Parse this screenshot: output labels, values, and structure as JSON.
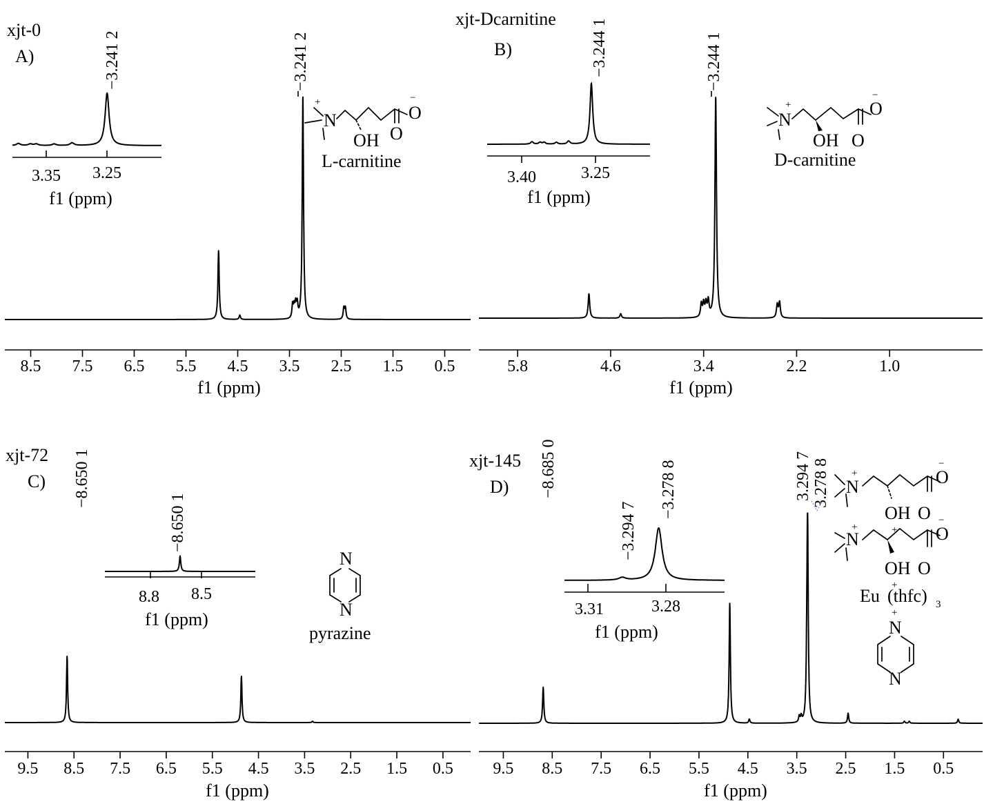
{
  "axis_title": "f1 (ppm)",
  "panels": {
    "A": {
      "sample": "xjt-0",
      "label": "A)",
      "peak_label": "−3.241 2",
      "inset_peak_label": "−3.241 2",
      "ticks": [
        "8.5",
        "7.5",
        "6.5",
        "5.5",
        "4.5",
        "3.5",
        "2.5",
        "1.5",
        "0.5"
      ],
      "inset_ticks": [
        "3.35",
        "3.25"
      ],
      "molecule": {
        "name": "L-carnitine",
        "OH": "OH",
        "O": "O",
        "N": "N",
        "plus": "+",
        "minus": "−"
      }
    },
    "B": {
      "sample": "xjt-Dcarnitine",
      "label": "B)",
      "peak_label": "−3.244 1",
      "inset_peak_label": "−3.244 1",
      "ticks": [
        "5.8",
        "4.6",
        "3.4",
        "2.2",
        "1.0"
      ],
      "inset_ticks": [
        "3.40",
        "3.25"
      ],
      "molecule": {
        "name": "D-carnitine",
        "OH": "OH",
        "O": "O",
        "N": "N",
        "plus": "+",
        "minus": "−"
      }
    },
    "C": {
      "sample": "xjt-72",
      "label": "C)",
      "peak_label": "−8.650 1",
      "inset_peak_label": "−8.650 1",
      "ticks": [
        "9.5",
        "8.5",
        "7.5",
        "6.5",
        "5.5",
        "4.5",
        "3.5",
        "2.5",
        "1.5",
        "0.5"
      ],
      "inset_ticks": [
        "8.8",
        "8.5"
      ],
      "molecule": {
        "name": "pyrazine",
        "N": "N"
      }
    },
    "D": {
      "sample": "xjt-145",
      "label": "D)",
      "peak_label": "−8.685 0",
      "peak_label_2": "3.294 7",
      "peak_label_3": "3.278 8",
      "inset_peak_label_1": "−3.294 7",
      "inset_peak_label_2": "−3.278 8",
      "ticks": [
        "9.5",
        "8.5",
        "7.5",
        "6.5",
        "5.5",
        "4.5",
        "3.5",
        "2.5",
        "1.5",
        "0.5"
      ],
      "inset_ticks": [
        "3.31",
        "3.28"
      ],
      "complex": {
        "eu": "Eu",
        "ligand": "(thfc)",
        "sub": "3",
        "N": "N",
        "OH": "OH",
        "O": "O",
        "plus": "+",
        "minus": "−"
      }
    }
  },
  "chart_data": [
    {
      "type": "line",
      "panel": "A)",
      "title": "xjt-0",
      "xlabel": "f1 (ppm)",
      "xlim": [
        9.0,
        0.0
      ],
      "reversed_x": true,
      "peaks_ppm": [
        4.87,
        4.46,
        3.44,
        3.41,
        3.38,
        3.35,
        3.241,
        2.45,
        2.42
      ],
      "peak_heights_rel": [
        0.31,
        0.02,
        0.06,
        0.05,
        0.06,
        0.06,
        1.0,
        0.05,
        0.05
      ],
      "labeled_peak": 3.2412,
      "inset_xlim": [
        3.4,
        3.15
      ],
      "inset_labeled_peak": 3.2412
    },
    {
      "type": "line",
      "panel": "B)",
      "title": "xjt-Dcarnitine",
      "xlabel": "f1 (ppm)",
      "xlim": [
        6.3,
        -0.2
      ],
      "reversed_x": true,
      "peaks_ppm": [
        4.88,
        4.47,
        3.43,
        3.4,
        3.37,
        3.34,
        3.2441,
        2.45,
        2.42
      ],
      "peak_heights_rel": [
        0.11,
        0.02,
        0.06,
        0.06,
        0.06,
        0.07,
        1.0,
        0.06,
        0.07
      ],
      "labeled_peak": 3.2441,
      "inset_xlim": [
        3.5,
        3.1
      ],
      "inset_labeled_peak": 3.2441
    },
    {
      "type": "line",
      "panel": "C)",
      "title": "xjt-72",
      "xlabel": "f1 (ppm)",
      "xlim": [
        10.0,
        -0.1
      ],
      "reversed_x": true,
      "peaks_ppm": [
        8.6501,
        4.87,
        3.33
      ],
      "peak_heights_rel": [
        1.0,
        0.7,
        0.02
      ],
      "labeled_peak": 8.6501,
      "inset_xlim": [
        9.0,
        8.3
      ],
      "inset_labeled_peak": 8.6501
    },
    {
      "type": "line",
      "panel": "D)",
      "title": "xjt-145",
      "xlabel": "f1 (ppm)",
      "xlim": [
        10.0,
        -0.3
      ],
      "reversed_x": true,
      "peaks_ppm": [
        8.685,
        4.87,
        4.47,
        3.45,
        3.41,
        3.2947,
        3.2788,
        2.45,
        1.3,
        1.2,
        0.2
      ],
      "peak_heights_rel": [
        0.18,
        0.6,
        0.02,
        0.03,
        0.03,
        0.2,
        1.0,
        0.05,
        0.01,
        0.01,
        0.02
      ],
      "labeled_peaks": [
        8.685,
        3.2947,
        3.2788
      ],
      "inset_xlim": [
        3.32,
        3.25
      ],
      "inset_labeled_peaks": [
        3.2947,
        3.2788
      ]
    }
  ]
}
